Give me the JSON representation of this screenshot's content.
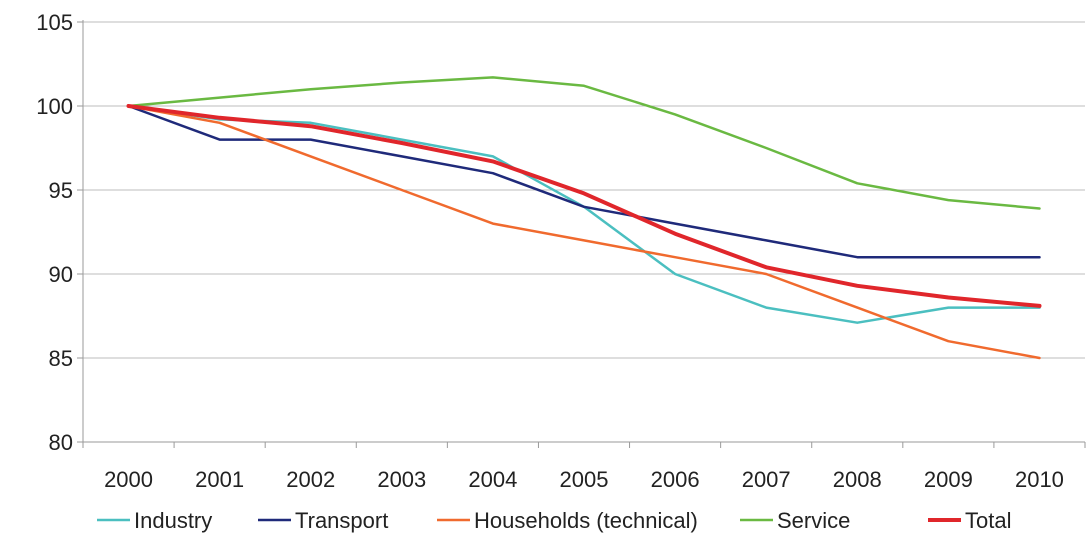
{
  "chart_data": {
    "type": "line",
    "title": "",
    "xlabel": "",
    "ylabel": "",
    "x": [
      2000,
      2001,
      2002,
      2003,
      2004,
      2005,
      2006,
      2007,
      2008,
      2009,
      2010
    ],
    "x_tick_labels": [
      "2000",
      "2001",
      "2002",
      "2003",
      "2004",
      "2005",
      "2006",
      "2007",
      "2008",
      "2009",
      "2010"
    ],
    "ylim": [
      80,
      105
    ],
    "y_ticks": [
      80,
      85,
      90,
      95,
      100,
      105
    ],
    "y_tick_labels": [
      "80",
      "85",
      "90",
      "95",
      "100",
      "105"
    ],
    "grid": "horizontal",
    "legend": "bottom",
    "series": [
      {
        "name": "Industry",
        "color": "#4bbfc0",
        "values": [
          100,
          99.2,
          99.0,
          98.0,
          97.0,
          94.0,
          90.0,
          88.0,
          87.1,
          88.0,
          88.0
        ]
      },
      {
        "name": "Transport",
        "color": "#1f2a7a",
        "values": [
          100,
          98.0,
          98.0,
          97.0,
          96.0,
          94.0,
          93.0,
          92.0,
          91.0,
          91.0,
          91.0
        ]
      },
      {
        "name": "Households (technical)",
        "color": "#f06a2e",
        "values": [
          100,
          99.0,
          97.0,
          95.0,
          93.0,
          92.0,
          91.0,
          90.0,
          88.0,
          86.0,
          85.0
        ]
      },
      {
        "name": "Service",
        "color": "#6ab942",
        "values": [
          100,
          100.5,
          101.0,
          101.4,
          101.7,
          101.2,
          99.5,
          97.5,
          95.4,
          94.4,
          93.9
        ]
      },
      {
        "name": "Total",
        "color": "#e0262b",
        "values": [
          100,
          99.3,
          98.8,
          97.8,
          96.7,
          94.8,
          92.4,
          90.4,
          89.3,
          88.6,
          88.1
        ]
      }
    ]
  }
}
